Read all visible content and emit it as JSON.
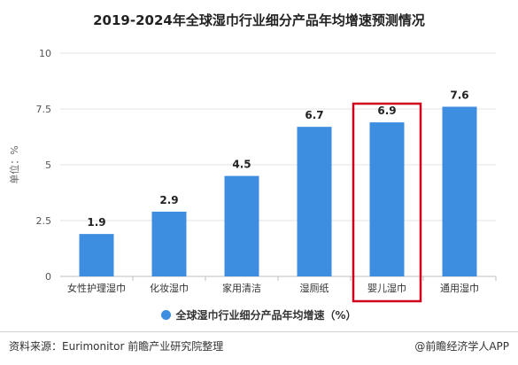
{
  "title": "2019-2024年全球湿巾行业细分产品年均增速预测情况",
  "chart_data": {
    "type": "bar",
    "categories": [
      "女性护理湿巾",
      "化妆湿巾",
      "家用清洁",
      "湿厕纸",
      "婴儿湿巾",
      "通用湿巾"
    ],
    "series": [
      {
        "name": "全球湿巾行业细分产品年均增速（%）",
        "values": [
          1.9,
          2.9,
          4.5,
          6.7,
          6.9,
          7.6
        ]
      }
    ],
    "data_labels": [
      "1.9",
      "2.9",
      "4.5",
      "6.7",
      "6.9",
      "7.6"
    ],
    "ylabel": "单位：%",
    "ylim": [
      0,
      10
    ],
    "yticks": [
      "0",
      "2.5",
      "5",
      "7.5",
      "10"
    ],
    "grid": true,
    "legend_position": "bottom",
    "highlighted_category": "婴儿湿巾",
    "bar_color": "#3d8de0",
    "highlight_color": "#d0021b"
  },
  "legend": {
    "label": "全球湿巾行业细分产品年均增速（%）"
  },
  "footer": {
    "source": "资料来源：Eurimonitor 前瞻产业研究院整理",
    "brand": "@前瞻经济学人APP"
  }
}
